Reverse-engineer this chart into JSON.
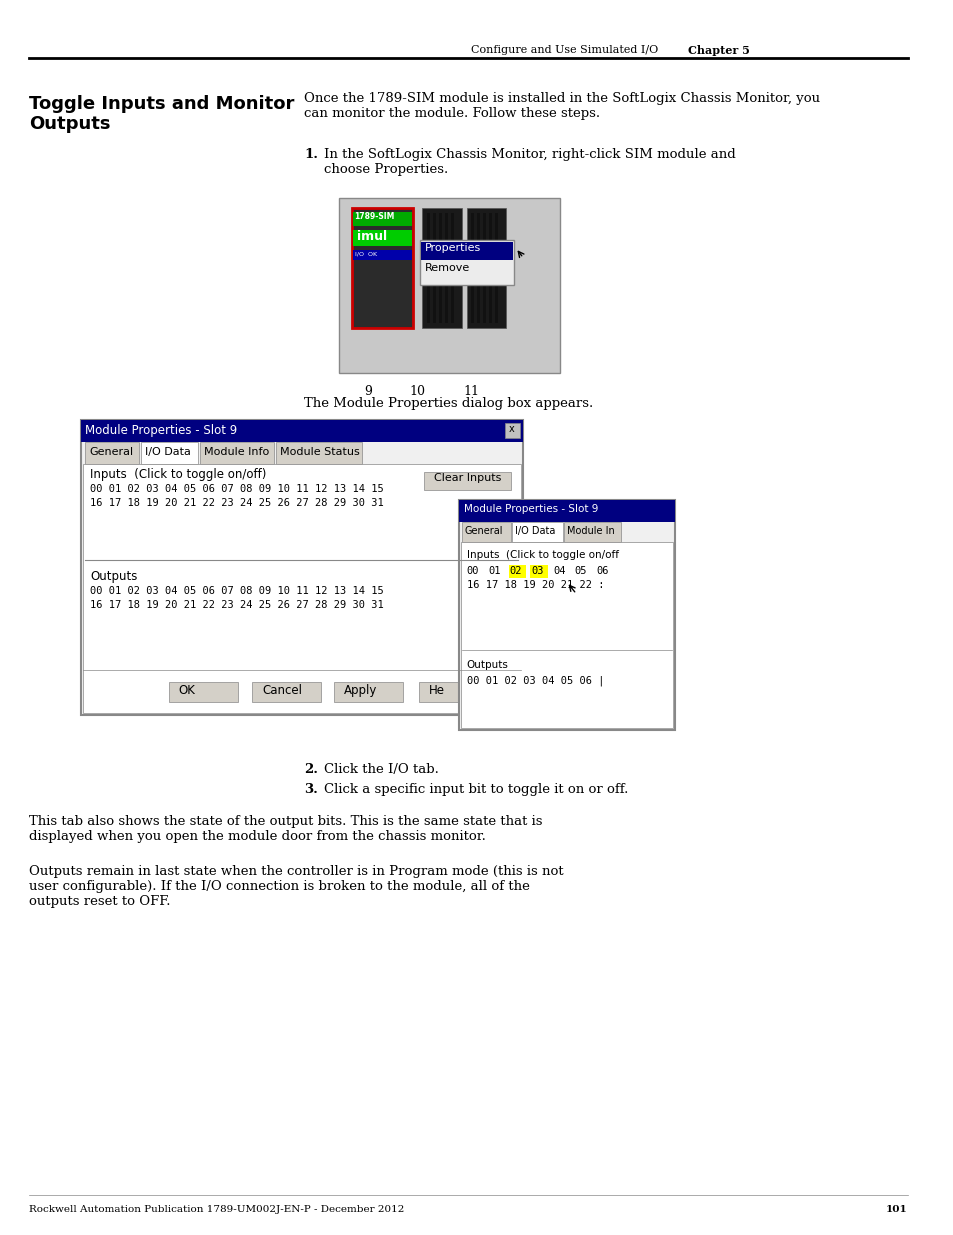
{
  "page_header_text": "Configure and Use Simulated I/O",
  "page_header_chapter": "Chapter 5",
  "section_title_line1": "Toggle Inputs and Monitor",
  "section_title_line2": "Outputs",
  "intro_text": "Once the 1789-SIM module is installed in the SoftLogix Chassis Monitor, you\ncan monitor the module. Follow these steps.",
  "step1_text": "In the SoftLogix Chassis Monitor, right-click SIM module and\nchoose Properties.",
  "step2_text": "Click the I/O tab.",
  "step3_text": "Click a specific input bit to toggle it on or off.",
  "para1": "This tab also shows the state of the output bits. This is the same state that is\ndisplayed when you open the module door from the chassis monitor.",
  "para2": "Outputs remain in last state when the controller is in Program mode (this is not\nuser configurable). If the I/O connection is broken to the module, all of the\noutputs reset to OFF.",
  "footer_text": "Rockwell Automation Publication 1789-UM002J-EN-P - December 2012",
  "footer_page": "101",
  "bg_color": "#ffffff",
  "text_color": "#000000",
  "header_line_color": "#000000",
  "footer_line_color": "#cccccc"
}
